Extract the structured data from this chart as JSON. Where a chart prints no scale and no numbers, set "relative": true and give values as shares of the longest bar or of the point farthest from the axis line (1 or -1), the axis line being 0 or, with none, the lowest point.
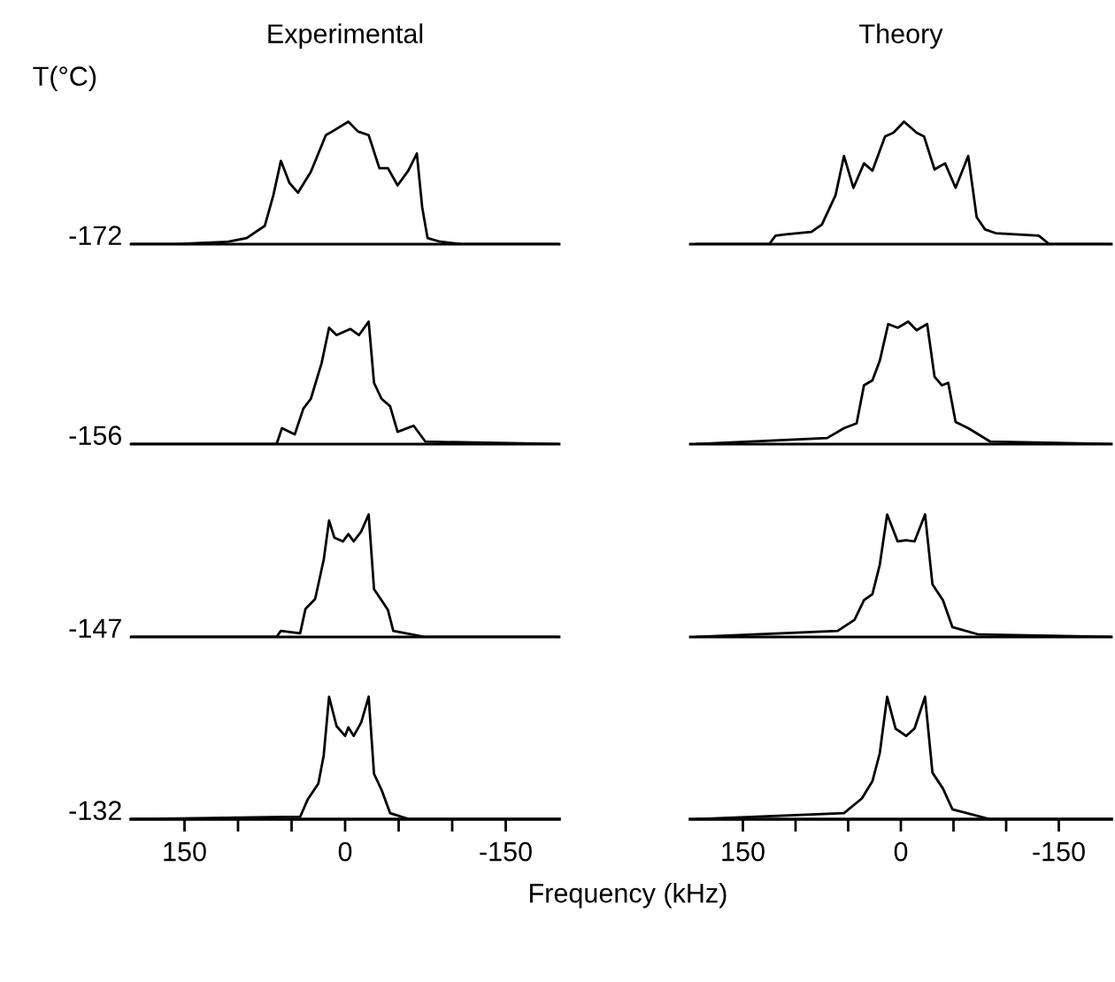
{
  "chart_data": [
    {
      "type": "line",
      "title": "Experimental",
      "ylabel": "-172",
      "annotations": [
        "T(°C)"
      ],
      "relative": true,
      "xlim": [
        200,
        -200
      ],
      "tick_labels": false,
      "series": [
        {
          "color": "#000000",
          "x": [
            200,
            159,
            109,
            92,
            75,
            67,
            60,
            52,
            44,
            32,
            18,
            12,
            -3,
            -12,
            -22,
            -32,
            -40,
            -49,
            -59,
            -67,
            -72,
            -77,
            -89,
            -109,
            -200
          ],
          "values": [
            0,
            0,
            0.02,
            0.05,
            0.15,
            0.4,
            0.68,
            0.5,
            0.42,
            0.59,
            0.89,
            0.92,
            1,
            0.92,
            0.89,
            0.62,
            0.62,
            0.48,
            0.6,
            0.74,
            0.3,
            0.05,
            0.02,
            0,
            0
          ]
        }
      ]
    },
    {
      "type": "line",
      "title": "Theory",
      "relative": true,
      "xlim": [
        200,
        -200
      ],
      "tick_labels": false,
      "series": [
        {
          "color": "#000000",
          "x": [
            194,
            125,
            119,
            109,
            85,
            75,
            62,
            54,
            45,
            35,
            27,
            15,
            7,
            -3,
            -15,
            -22,
            -32,
            -42,
            -52,
            -64,
            -72,
            -80,
            -90,
            -131,
            -141,
            -200
          ],
          "values": [
            0,
            0,
            0.07,
            0.08,
            0.1,
            0.16,
            0.4,
            0.72,
            0.46,
            0.66,
            0.6,
            0.88,
            0.91,
            1,
            0.91,
            0.88,
            0.61,
            0.66,
            0.46,
            0.72,
            0.22,
            0.12,
            0.09,
            0.07,
            0,
            0
          ]
        }
      ]
    },
    {
      "type": "line",
      "ylabel": "-156",
      "relative": true,
      "xlim": [
        200,
        -200
      ],
      "tick_labels": false,
      "series": [
        {
          "color": "#000000",
          "x": [
            200,
            64,
            59,
            47,
            39,
            32,
            22,
            15,
            8,
            -5,
            -13,
            -22,
            -27,
            -34,
            -42,
            -49,
            -64,
            -75,
            -200
          ],
          "values": [
            0,
            0,
            0.13,
            0.08,
            0.29,
            0.37,
            0.66,
            0.95,
            0.89,
            0.94,
            0.89,
            1,
            0.5,
            0.37,
            0.31,
            0.1,
            0.15,
            0.02,
            0
          ]
        }
      ]
    },
    {
      "type": "line",
      "relative": true,
      "xlim": [
        200,
        -200
      ],
      "tick_labels": false,
      "series": [
        {
          "color": "#000000",
          "x": [
            194,
            70,
            54,
            42,
            35,
            27,
            20,
            12,
            3,
            -7,
            -15,
            -25,
            -32,
            -39,
            -45,
            -52,
            -64,
            -85,
            -200
          ],
          "values": [
            0,
            0.05,
            0.13,
            0.17,
            0.48,
            0.52,
            0.68,
            0.98,
            0.95,
            1,
            0.93,
            0.98,
            0.55,
            0.48,
            0.5,
            0.18,
            0.13,
            0.02,
            0
          ]
        }
      ]
    },
    {
      "type": "line",
      "ylabel": "-147",
      "relative": true,
      "xlim": [
        200,
        -200
      ],
      "tick_labels": false,
      "series": [
        {
          "color": "#000000",
          "x": [
            200,
            64,
            60,
            42,
            37,
            28,
            20,
            15,
            10,
            2,
            -3,
            -8,
            -15,
            -22,
            -27,
            -34,
            -40,
            -45,
            -75,
            -200
          ],
          "values": [
            0,
            0,
            0.05,
            0.03,
            0.23,
            0.31,
            0.63,
            0.95,
            0.81,
            0.78,
            0.84,
            0.78,
            0.86,
            1,
            0.39,
            0.3,
            0.22,
            0.05,
            0,
            0
          ]
        }
      ]
    },
    {
      "type": "line",
      "relative": true,
      "xlim": [
        200,
        -200
      ],
      "tick_labels": false,
      "series": [
        {
          "color": "#000000",
          "x": [
            194,
            60,
            44,
            35,
            27,
            20,
            13,
            3,
            -5,
            -13,
            -23,
            -30,
            -40,
            -49,
            -74,
            -200
          ],
          "values": [
            0,
            0.05,
            0.14,
            0.3,
            0.35,
            0.59,
            1,
            0.78,
            0.79,
            0.78,
            1,
            0.43,
            0.3,
            0.08,
            0.02,
            0
          ]
        }
      ]
    },
    {
      "type": "line",
      "ylabel": "-132",
      "relative": true,
      "xlim": [
        200,
        -200
      ],
      "xticks": [
        {
          "value": 150,
          "label": "150"
        },
        {
          "value": 100,
          "label": null
        },
        {
          "value": 50,
          "label": null
        },
        {
          "value": 0,
          "label": "0"
        },
        {
          "value": -50,
          "label": null
        },
        {
          "value": -100,
          "label": null
        },
        {
          "value": -150,
          "label": "-150"
        }
      ],
      "tick_labels": "x",
      "xlabel": "Frequency (kHz)",
      "series": [
        {
          "color": "#000000",
          "x": [
            200,
            42,
            35,
            25,
            20,
            15,
            8,
            0,
            -3,
            -8,
            -15,
            -22,
            -27,
            -34,
            -42,
            -60,
            -200
          ],
          "values": [
            0,
            0.02,
            0.16,
            0.29,
            0.52,
            1,
            0.76,
            0.68,
            0.75,
            0.68,
            0.79,
            1,
            0.37,
            0.24,
            0.05,
            0,
            0
          ]
        }
      ]
    },
    {
      "type": "line",
      "relative": true,
      "xlim": [
        200,
        -200
      ],
      "xticks": [
        {
          "value": 150,
          "label": "150"
        },
        {
          "value": 100,
          "label": null
        },
        {
          "value": 50,
          "label": null
        },
        {
          "value": 0,
          "label": "0"
        },
        {
          "value": -50,
          "label": null
        },
        {
          "value": -100,
          "label": null
        },
        {
          "value": -150,
          "label": "-150"
        }
      ],
      "tick_labels": "x",
      "series": [
        {
          "color": "#000000",
          "x": [
            194,
            54,
            37,
            27,
            20,
            13,
            5,
            -5,
            -13,
            -23,
            -30,
            -40,
            -49,
            -85,
            -200
          ],
          "values": [
            0,
            0.05,
            0.17,
            0.31,
            0.54,
            1,
            0.74,
            0.68,
            0.74,
            1,
            0.38,
            0.25,
            0.08,
            0,
            0
          ]
        }
      ]
    }
  ]
}
